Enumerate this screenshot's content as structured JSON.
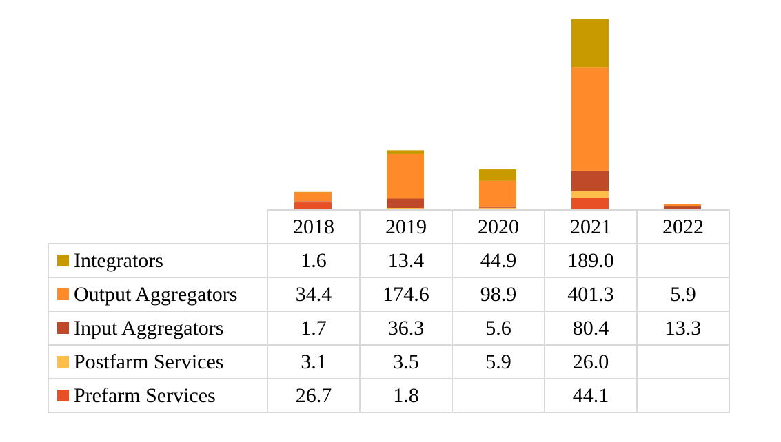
{
  "chart_data": {
    "type": "bar",
    "stacked": true,
    "categories": [
      "2018",
      "2019",
      "2020",
      "2021",
      "2022"
    ],
    "series": [
      {
        "name": "Integrators",
        "color": "#C99A00",
        "values": [
          1.6,
          13.4,
          44.9,
          189.0,
          null
        ],
        "labels": [
          "1.6",
          "13.4",
          "44.9",
          "189.0",
          ""
        ]
      },
      {
        "name": "Output Aggregators",
        "color": "#FF8A2A",
        "values": [
          34.4,
          174.6,
          98.9,
          401.3,
          5.9
        ],
        "labels": [
          "34.4",
          "174.6",
          "98.9",
          "401.3",
          "5.9"
        ]
      },
      {
        "name": "Input Aggregators",
        "color": "#BF4A2A",
        "values": [
          1.7,
          36.3,
          5.6,
          80.4,
          13.3
        ],
        "labels": [
          "1.7",
          "36.3",
          "5.6",
          "80.4",
          "13.3"
        ]
      },
      {
        "name": "Postfarm Services",
        "color": "#FFBE4A",
        "values": [
          3.1,
          3.5,
          5.9,
          26.0,
          null
        ],
        "labels": [
          "3.1",
          "3.5",
          "5.9",
          "26.0",
          ""
        ]
      },
      {
        "name": "Prefarm Services",
        "color": "#E94F24",
        "values": [
          26.7,
          1.8,
          null,
          44.1,
          null
        ],
        "labels": [
          "26.7",
          "1.8",
          "",
          "44.1",
          ""
        ]
      }
    ],
    "stack_order_bottom_to_top": [
      "Prefarm Services",
      "Postfarm Services",
      "Input Aggregators",
      "Output Aggregators",
      "Integrators"
    ],
    "ylim": [
      0,
      740
    ],
    "legend": "data-table-below",
    "grid": false
  }
}
